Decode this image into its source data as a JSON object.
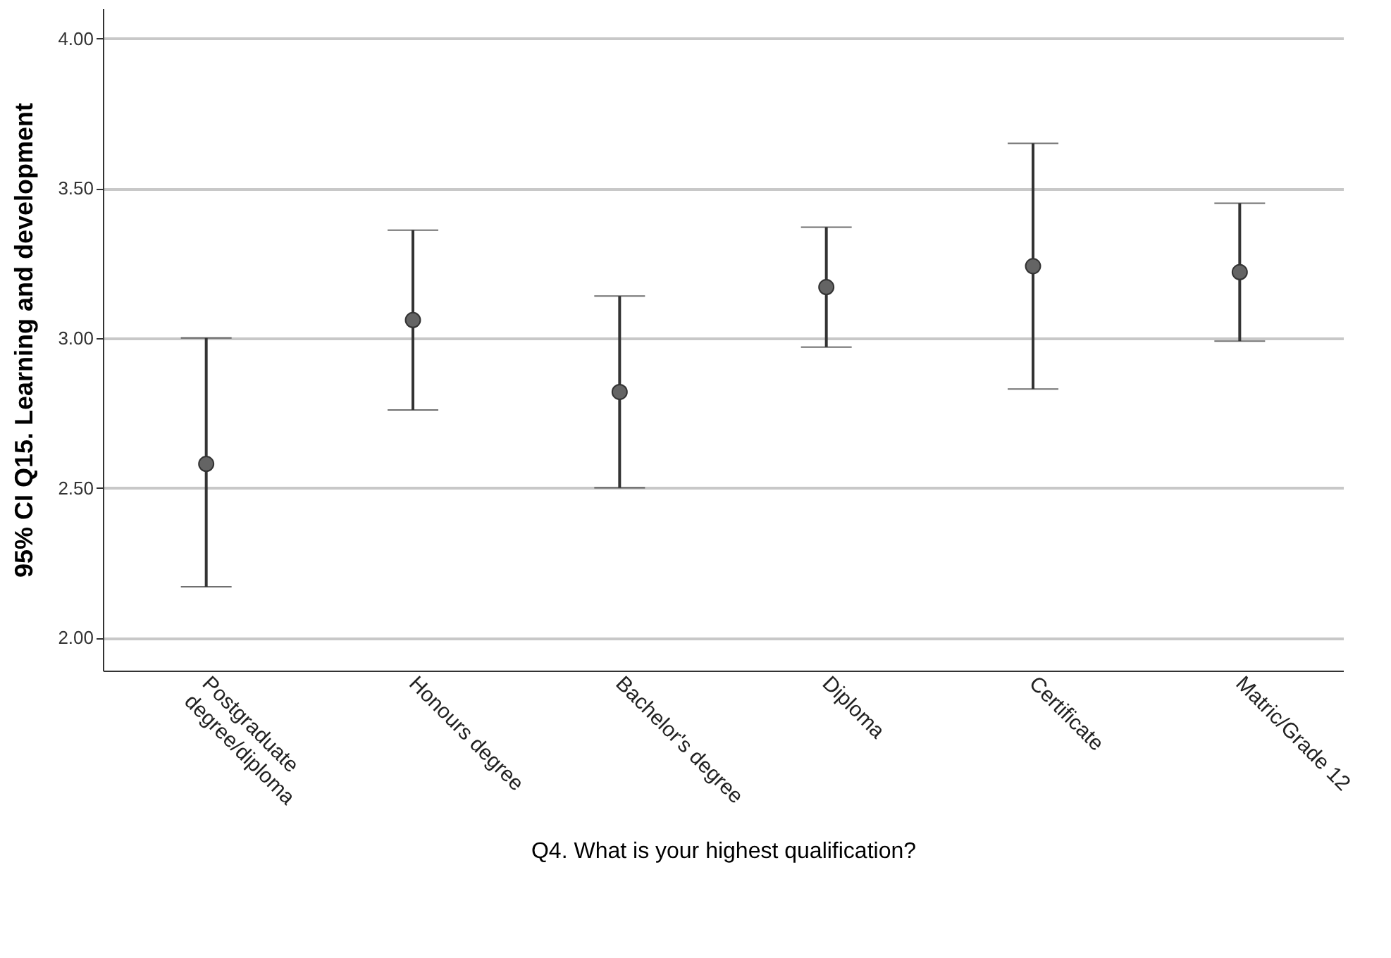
{
  "chart_data": {
    "type": "scatter",
    "xlabel": "Q4. What is your highest qualification?",
    "ylabel": "95% CI Q15. Learning and development",
    "categories": [
      "Postgraduate degree/diploma",
      "Honours degree",
      "Bachelor's degree",
      "Diploma",
      "Certificate",
      "Matric/Grade 12"
    ],
    "series": [
      {
        "color": "#646464",
        "values": [
          2.58,
          3.06,
          2.82,
          3.17,
          3.24,
          3.22
        ],
        "errors": [
          [
            2.17,
            3.0
          ],
          [
            2.76,
            3.36
          ],
          [
            2.5,
            3.14
          ],
          [
            2.97,
            3.37
          ],
          [
            2.83,
            3.65
          ],
          [
            2.99,
            3.45
          ]
        ]
      }
    ],
    "ylim": [
      1.89,
      4.1
    ],
    "yticks": [
      {
        "value": 2,
        "label": "2.00"
      },
      {
        "value": 2.5,
        "label": "2.50"
      },
      {
        "value": 3,
        "label": "3.00"
      },
      {
        "value": 3.5,
        "label": "3.50"
      },
      {
        "value": 4,
        "label": "4.00"
      }
    ],
    "grid": "y",
    "marker": "circle",
    "legend": false
  }
}
